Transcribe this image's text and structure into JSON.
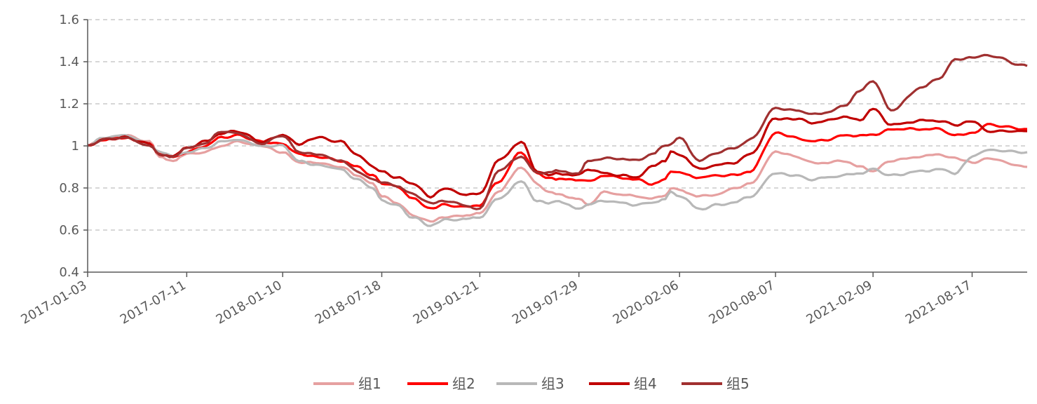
{
  "chart_data": {
    "type": "line",
    "title": "",
    "xlabel": "",
    "ylabel": "",
    "x_ticks": [
      "2017-01-03",
      "2017-07-11",
      "2018-01-10",
      "2018-07-18",
      "2019-01-21",
      "2019-07-29",
      "2020-02-06",
      "2020-08-07",
      "2021-02-09",
      "2021-08-17"
    ],
    "x_range": [
      "2017-01-03",
      "2021-11-30"
    ],
    "y_ticks": [
      "0.4",
      "0.6",
      "0.8",
      "1",
      "1.2",
      "1.4",
      "1.6"
    ],
    "ylim": [
      0.4,
      1.6
    ],
    "grid": "horizontal dashed",
    "legend_position": "bottom",
    "series": [
      {
        "name": "组1",
        "color": "#e6a0a0",
        "x": [
          "2017-01-03",
          "2017-02-01",
          "2017-03-15",
          "2017-05-01",
          "2017-05-20",
          "2017-06-15",
          "2017-07-11",
          "2017-08-15",
          "2017-09-15",
          "2017-10-15",
          "2017-12-01",
          "2018-01-10",
          "2018-02-10",
          "2018-03-15",
          "2018-05-01",
          "2018-06-01",
          "2018-07-01",
          "2018-07-18",
          "2018-08-15",
          "2018-09-15",
          "2018-10-19",
          "2018-11-15",
          "2018-12-20",
          "2019-01-21",
          "2019-02-25",
          "2019-04-10",
          "2019-05-10",
          "2019-06-01",
          "2019-06-15",
          "2019-07-29",
          "2019-08-15",
          "2019-09-15",
          "2019-10-15",
          "2019-11-15",
          "2019-12-15",
          "2020-01-10",
          "2020-01-20",
          "2020-02-06",
          "2020-03-15",
          "2020-04-20",
          "2020-05-20",
          "2020-06-20",
          "2020-08-07",
          "2020-09-15",
          "2020-10-15",
          "2020-11-15",
          "2020-12-15",
          "2021-01-15",
          "2021-02-09",
          "2021-03-15",
          "2021-05-15",
          "2021-06-15",
          "2021-07-15",
          "2021-08-17",
          "2021-09-15",
          "2021-11-30"
        ],
        "y": [
          1.0,
          1.03,
          1.05,
          1.02,
          0.95,
          0.93,
          0.96,
          0.97,
          1.0,
          1.02,
          1.0,
          0.97,
          0.92,
          0.92,
          0.9,
          0.86,
          0.82,
          0.76,
          0.73,
          0.67,
          0.64,
          0.66,
          0.67,
          0.68,
          0.78,
          0.9,
          0.82,
          0.78,
          0.77,
          0.75,
          0.72,
          0.78,
          0.77,
          0.76,
          0.75,
          0.76,
          0.8,
          0.79,
          0.76,
          0.77,
          0.8,
          0.82,
          0.97,
          0.95,
          0.92,
          0.92,
          0.93,
          0.9,
          0.88,
          0.93,
          0.95,
          0.96,
          0.94,
          0.92,
          0.94,
          0.9
        ]
      },
      {
        "name": "组2",
        "color": "#ff0000",
        "x": [
          "2017-01-03",
          "2017-02-01",
          "2017-03-15",
          "2017-05-01",
          "2017-05-20",
          "2017-06-15",
          "2017-07-11",
          "2017-08-15",
          "2017-09-15",
          "2017-10-15",
          "2017-12-01",
          "2018-01-10",
          "2018-02-10",
          "2018-03-15",
          "2018-05-01",
          "2018-06-01",
          "2018-07-01",
          "2018-07-18",
          "2018-08-15",
          "2018-09-15",
          "2018-10-19",
          "2018-11-15",
          "2018-12-20",
          "2019-01-21",
          "2019-02-25",
          "2019-04-10",
          "2019-05-10",
          "2019-06-01",
          "2019-06-15",
          "2019-07-29",
          "2019-08-15",
          "2019-09-15",
          "2019-10-15",
          "2019-11-15",
          "2019-12-15",
          "2020-01-10",
          "2020-01-20",
          "2020-02-06",
          "2020-03-15",
          "2020-04-20",
          "2020-05-20",
          "2020-06-20",
          "2020-08-07",
          "2020-09-15",
          "2020-10-15",
          "2020-11-15",
          "2020-12-15",
          "2021-01-15",
          "2021-02-09",
          "2021-03-15",
          "2021-05-15",
          "2021-06-15",
          "2021-07-15",
          "2021-08-17",
          "2021-09-15",
          "2021-11-30"
        ],
        "y": [
          1.0,
          1.03,
          1.04,
          1.01,
          0.96,
          0.95,
          0.97,
          1.0,
          1.04,
          1.05,
          1.02,
          1.01,
          0.96,
          0.95,
          0.93,
          0.9,
          0.86,
          0.82,
          0.81,
          0.75,
          0.7,
          0.72,
          0.71,
          0.72,
          0.83,
          0.97,
          0.87,
          0.85,
          0.84,
          0.84,
          0.83,
          0.86,
          0.85,
          0.84,
          0.82,
          0.84,
          0.88,
          0.87,
          0.85,
          0.86,
          0.86,
          0.88,
          1.06,
          1.04,
          1.02,
          1.03,
          1.05,
          1.05,
          1.05,
          1.08,
          1.08,
          1.08,
          1.05,
          1.06,
          1.1,
          1.08
        ]
      },
      {
        "name": "组3",
        "color": "#b8b8b8",
        "x": [
          "2017-01-03",
          "2017-02-01",
          "2017-03-15",
          "2017-05-01",
          "2017-05-20",
          "2017-06-15",
          "2017-07-11",
          "2017-08-15",
          "2017-09-15",
          "2017-10-15",
          "2017-12-01",
          "2018-01-10",
          "2018-02-10",
          "2018-03-15",
          "2018-05-01",
          "2018-06-01",
          "2018-07-01",
          "2018-07-18",
          "2018-08-15",
          "2018-09-15",
          "2018-10-19",
          "2018-11-15",
          "2018-12-20",
          "2019-01-21",
          "2019-02-25",
          "2019-04-10",
          "2019-05-10",
          "2019-06-01",
          "2019-06-15",
          "2019-07-29",
          "2019-08-15",
          "2019-09-15",
          "2019-10-15",
          "2019-11-15",
          "2019-12-15",
          "2020-01-10",
          "2020-01-20",
          "2020-02-06",
          "2020-03-15",
          "2020-04-20",
          "2020-05-20",
          "2020-06-20",
          "2020-08-07",
          "2020-09-15",
          "2020-10-15",
          "2020-11-15",
          "2020-12-15",
          "2021-01-15",
          "2021-02-09",
          "2021-03-15",
          "2021-05-15",
          "2021-06-15",
          "2021-07-15",
          "2021-08-17",
          "2021-09-15",
          "2021-11-30"
        ],
        "y": [
          1.0,
          1.04,
          1.05,
          1.01,
          0.97,
          0.95,
          0.97,
          0.99,
          1.02,
          1.03,
          1.0,
          1.0,
          0.93,
          0.91,
          0.89,
          0.84,
          0.8,
          0.74,
          0.72,
          0.66,
          0.62,
          0.65,
          0.65,
          0.66,
          0.75,
          0.83,
          0.74,
          0.73,
          0.74,
          0.7,
          0.72,
          0.74,
          0.73,
          0.72,
          0.73,
          0.75,
          0.78,
          0.76,
          0.7,
          0.72,
          0.73,
          0.76,
          0.87,
          0.86,
          0.84,
          0.85,
          0.86,
          0.87,
          0.89,
          0.86,
          0.88,
          0.89,
          0.87,
          0.95,
          0.98,
          0.97
        ]
      },
      {
        "name": "组4",
        "color": "#c00000",
        "x": [
          "2017-01-03",
          "2017-02-01",
          "2017-03-15",
          "2017-05-01",
          "2017-05-20",
          "2017-06-15",
          "2017-07-11",
          "2017-08-15",
          "2017-09-15",
          "2017-10-15",
          "2017-12-01",
          "2018-01-10",
          "2018-02-10",
          "2018-03-15",
          "2018-05-01",
          "2018-06-01",
          "2018-07-01",
          "2018-07-18",
          "2018-08-15",
          "2018-09-15",
          "2018-10-19",
          "2018-11-15",
          "2018-12-20",
          "2019-01-21",
          "2019-02-25",
          "2019-04-10",
          "2019-05-10",
          "2019-06-01",
          "2019-06-15",
          "2019-07-29",
          "2019-08-15",
          "2019-09-15",
          "2019-10-15",
          "2019-11-15",
          "2019-12-15",
          "2020-01-10",
          "2020-01-20",
          "2020-02-06",
          "2020-03-15",
          "2020-04-20",
          "2020-05-20",
          "2020-06-20",
          "2020-08-07",
          "2020-09-15",
          "2020-10-15",
          "2020-11-15",
          "2020-12-15",
          "2021-01-15",
          "2021-02-09",
          "2021-03-15",
          "2021-05-15",
          "2021-06-15",
          "2021-07-15",
          "2021-08-17",
          "2021-09-15",
          "2021-11-30"
        ],
        "y": [
          1.0,
          1.03,
          1.04,
          1.01,
          0.96,
          0.95,
          0.99,
          1.02,
          1.06,
          1.07,
          1.02,
          1.05,
          1.01,
          1.04,
          1.02,
          0.96,
          0.9,
          0.88,
          0.85,
          0.82,
          0.76,
          0.8,
          0.77,
          0.77,
          0.93,
          1.02,
          0.88,
          0.86,
          0.87,
          0.86,
          0.89,
          0.87,
          0.86,
          0.85,
          0.9,
          0.93,
          0.97,
          0.96,
          0.89,
          0.91,
          0.92,
          0.96,
          1.13,
          1.13,
          1.11,
          1.12,
          1.14,
          1.12,
          1.18,
          1.1,
          1.12,
          1.12,
          1.1,
          1.12,
          1.07,
          1.07
        ]
      },
      {
        "name": "组5",
        "color": "#a03030",
        "x": [
          "2017-01-03",
          "2017-02-01",
          "2017-03-15",
          "2017-05-01",
          "2017-05-20",
          "2017-06-15",
          "2017-07-11",
          "2017-08-15",
          "2017-09-15",
          "2017-10-15",
          "2017-12-01",
          "2018-01-10",
          "2018-02-10",
          "2018-03-15",
          "2018-05-01",
          "2018-06-01",
          "2018-07-01",
          "2018-07-18",
          "2018-08-15",
          "2018-09-15",
          "2018-10-19",
          "2018-11-15",
          "2018-12-20",
          "2019-01-21",
          "2019-02-25",
          "2019-04-10",
          "2019-05-10",
          "2019-06-01",
          "2019-06-15",
          "2019-07-29",
          "2019-08-15",
          "2019-09-15",
          "2019-10-15",
          "2019-11-15",
          "2019-12-15",
          "2020-01-10",
          "2020-01-20",
          "2020-02-06",
          "2020-03-15",
          "2020-04-20",
          "2020-05-20",
          "2020-06-20",
          "2020-08-07",
          "2020-09-15",
          "2020-10-15",
          "2020-11-15",
          "2020-12-15",
          "2021-01-15",
          "2021-02-09",
          "2021-03-15",
          "2021-05-15",
          "2021-06-15",
          "2021-07-15",
          "2021-08-17",
          "2021-09-15",
          "2021-11-30"
        ],
        "y": [
          1.0,
          1.03,
          1.04,
          1.0,
          0.96,
          0.95,
          0.99,
          1.01,
          1.07,
          1.06,
          1.01,
          1.05,
          0.97,
          0.96,
          0.93,
          0.88,
          0.84,
          0.83,
          0.81,
          0.77,
          0.73,
          0.74,
          0.72,
          0.7,
          0.88,
          0.95,
          0.87,
          0.87,
          0.88,
          0.87,
          0.93,
          0.94,
          0.94,
          0.93,
          0.96,
          1.0,
          1.01,
          1.04,
          0.93,
          0.97,
          0.99,
          1.03,
          1.18,
          1.17,
          1.15,
          1.16,
          1.19,
          1.26,
          1.31,
          1.17,
          1.28,
          1.32,
          1.41,
          1.42,
          1.43,
          1.38
        ]
      }
    ]
  }
}
